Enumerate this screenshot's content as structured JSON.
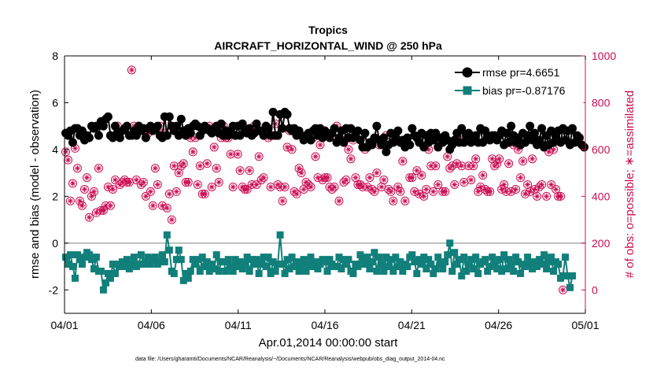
{
  "chart_data": {
    "type": "line",
    "title": "Tropics",
    "subtitle": "AIRCRAFT_HORIZONTAL_WIND @ 250 hPa",
    "xlabel": "Apr.01,2014 00:00:00 start",
    "ylabel_left": "rmse and bias (model - observation)",
    "ylabel_right": "# of obs: o=possible; ∗=assimilated",
    "xlim": [
      0,
      30
    ],
    "ylim_left": [
      -3,
      8
    ],
    "ylim_right": [
      -100,
      1000
    ],
    "x_tick_values": [
      0,
      5,
      10,
      15,
      20,
      25,
      30
    ],
    "x_tick_labels": [
      "04/01",
      "04/06",
      "04/11",
      "04/16",
      "04/21",
      "04/26",
      "05/01"
    ],
    "y_left_ticks": [
      "-2",
      "0",
      "2",
      "4",
      "6",
      "8"
    ],
    "y_right_ticks": [
      "0",
      "200",
      "400",
      "600",
      "800",
      "1000"
    ],
    "zero_line": 0,
    "series": [
      {
        "name": "rmse",
        "legend": "rmse pr=4.6651",
        "color": "#000000",
        "marker": "circle",
        "axis": "left",
        "values": [
          4.7,
          4.6,
          4.8,
          4.3,
          4.9,
          4.9,
          4.6,
          4.8,
          4.4,
          4.6,
          4.5,
          5.0,
          4.9,
          5.0,
          4.6,
          5.2,
          5.0,
          5.3,
          5.4,
          4.6,
          4.5,
          5.0,
          4.7,
          4.5,
          4.8,
          4.9,
          5.0,
          4.6,
          4.6,
          4.8,
          4.6,
          5.0,
          4.8,
          4.9,
          4.5,
          4.9,
          5.0,
          4.8,
          4.9,
          5.0,
          4.6,
          4.5,
          5.4,
          4.6,
          5.4,
          5.0,
          4.8,
          5.0,
          4.6,
          5.3,
          4.8,
          4.6,
          4.9,
          4.7,
          5.0,
          5.1,
          5.0,
          4.6,
          4.8,
          5.0,
          4.9,
          4.8,
          4.7,
          4.9,
          5.0,
          4.7,
          5.1,
          4.6,
          4.8,
          4.6,
          4.8,
          5.0,
          4.6,
          5.0,
          4.6,
          5.1,
          4.8,
          4.7,
          4.9,
          4.6,
          4.7,
          5.1,
          4.8,
          4.8,
          4.6,
          5.0,
          4.9,
          4.6,
          5.6,
          4.6,
          4.6,
          5.5,
          4.9,
          5.6,
          5.5,
          4.9,
          4.8,
          4.9,
          4.6,
          4.8,
          4.6,
          4.4,
          4.5,
          4.7,
          4.4,
          4.8,
          4.9,
          4.6,
          4.9,
          4.5,
          4.8,
          4.7,
          4.5,
          4.7,
          4.9,
          4.3,
          4.5,
          4.8,
          4.3,
          4.9,
          4.5,
          4.9,
          4.5,
          4.7,
          4.8,
          4.4,
          4.1,
          4.7,
          4.1,
          4.3,
          4.2,
          4.5,
          5.0,
          4.4,
          4.2,
          4.5,
          3.9,
          4.2,
          4.7,
          4.3,
          4.5,
          4.8,
          4.3,
          4.4,
          4.1,
          4.5,
          4.2,
          4.9,
          4.6,
          4.5,
          4.3,
          4.7,
          4.1,
          4.6,
          4.3,
          4.7,
          4.4,
          4.7,
          4.1,
          4.5,
          4.3,
          4.6,
          4.4,
          4.0,
          4.2,
          4.4,
          4.7,
          4.3,
          4.9,
          4.3,
          4.6,
          4.7,
          4.3,
          4.5,
          4.6,
          4.3,
          4.9,
          4.3,
          4.8,
          4.6,
          4.4,
          4.6,
          4.6,
          4.4,
          4.6,
          4.8,
          4.2,
          4.7,
          4.3,
          5.0,
          4.6,
          4.3,
          4.5,
          4.2,
          4.7,
          4.3,
          4.6,
          5.0,
          4.4,
          4.7,
          4.2,
          4.4,
          4.9,
          4.1,
          4.6,
          4.2,
          4.8,
          4.3,
          4.6,
          4.8,
          4.3,
          4.9,
          4.4,
          4.8,
          4.2,
          4.9,
          4.3,
          4.6,
          4.5,
          4.2,
          4.1
        ]
      },
      {
        "name": "bias",
        "legend": "bias pr=-0.87176",
        "color": "#117f7a",
        "marker": "square",
        "axis": "left",
        "values": [
          -0.6,
          -0.9,
          -0.5,
          -1.0,
          -1.5,
          -0.5,
          -0.7,
          -0.9,
          -0.6,
          -0.4,
          -0.5,
          -0.7,
          -1.1,
          -0.6,
          -1.2,
          -1.2,
          -2.0,
          -1.7,
          -1.3,
          -1.5,
          -0.9,
          -1.3,
          -0.9,
          -1.0,
          -0.8,
          -1.0,
          -0.7,
          -1.1,
          -0.9,
          -0.6,
          -1.0,
          -0.9,
          -0.5,
          -0.9,
          -0.8,
          -0.6,
          -0.9,
          -0.7,
          -0.6,
          -0.9,
          -0.8,
          -0.5,
          -0.8,
          0.35,
          -0.3,
          -1.2,
          -1.3,
          -0.7,
          -0.3,
          -0.7,
          -1.6,
          -1.3,
          -1.5,
          -1.2,
          -0.7,
          -0.9,
          -0.7,
          -1.2,
          -0.6,
          -1.0,
          -0.8,
          -1.2,
          -0.9,
          -1.1,
          -0.5,
          -1.2,
          -0.8,
          -0.8,
          -1.2,
          -0.7,
          -1.0,
          -1.2,
          -0.7,
          -1.0,
          -0.8,
          -1.1,
          -0.9,
          -0.6,
          -1.2,
          -0.7,
          -0.9,
          -0.7,
          -1.3,
          -0.9,
          -0.6,
          -1.0,
          -0.6,
          -1.3,
          -0.8,
          -1.2,
          -0.9,
          0.35,
          -0.9,
          -1.3,
          -0.7,
          -1.1,
          -0.6,
          -1.0,
          -0.8,
          -1.2,
          -1.0,
          -0.7,
          -1.2,
          -0.9,
          -0.6,
          -1.0,
          -0.8,
          -1.1,
          -0.9,
          -0.7,
          -0.8,
          -1.2,
          -0.7,
          -0.9,
          -1.0,
          -1.0,
          -0.6,
          -1.1,
          -0.7,
          -0.9,
          -0.7,
          -1.2,
          -1.3,
          -0.9,
          -1.0,
          -0.5,
          -0.7,
          -0.9,
          -0.6,
          -1.1,
          -0.8,
          -0.4,
          -1.2,
          -0.6,
          -0.9,
          -1.2,
          -0.6,
          -1.0,
          -0.7,
          -1.2,
          -0.6,
          -1.0,
          -0.8,
          -1.2,
          -0.9,
          -1.0,
          -0.6,
          -0.5,
          -0.8,
          -1.3,
          -0.7,
          -0.9,
          -0.6,
          -1.1,
          -0.7,
          -0.9,
          -1.3,
          -1.1,
          -0.6,
          -0.9,
          -1.1,
          -0.8,
          -0.5,
          0.0,
          -1.2,
          -0.4,
          -0.9,
          -0.7,
          -1.4,
          -0.6,
          -1.2,
          -0.9,
          -0.7,
          -1.1,
          -0.6,
          -1.3,
          -0.9,
          -0.8,
          -0.7,
          -1.2,
          -1.0,
          -0.6,
          -0.9,
          -1.1,
          -0.7,
          -1.2,
          -0.5,
          -1.1,
          -0.7,
          -0.9,
          -1.2,
          -0.6,
          -0.8,
          -1.3,
          -0.9,
          -1.0,
          -0.6,
          -0.9,
          -1.1,
          -0.8,
          -1.0,
          -0.7,
          -0.9,
          -0.5,
          -1.1,
          -0.8,
          -0.6,
          -1.2,
          -0.8,
          -0.9,
          -1.5,
          -1.4,
          -0.6,
          -1.4,
          -1.9,
          -1.4
        ]
      },
      {
        "name": "possible",
        "marker": "circle-open",
        "color": "#cc0d54",
        "axis": "right",
        "values": [
          590,
          555,
          380,
          455,
          605,
          520,
          380,
          360,
          430,
          480,
          310,
          400,
          420,
          330,
          520,
          340,
          340,
          360,
          440,
          360,
          430,
          470,
          700,
          450,
          460,
          470,
          460,
          460,
          940,
          700,
          470,
          700,
          450,
          460,
          400,
          670,
          420,
          360,
          520,
          450,
          700,
          360,
          670,
          350,
          410,
          300,
          530,
          420,
          500,
          530,
          540,
          460,
          460,
          650,
          590,
          650,
          450,
          530,
          410,
          410,
          540,
          700,
          440,
          610,
          520,
          460,
          650,
          700,
          650,
          650,
          580,
          440,
          660,
          580,
          510,
          440,
          430,
          430,
          510,
          450,
          700,
          450,
          570,
          470,
          480,
          700,
          650,
          440,
          660,
          710,
          450,
          440,
          380,
          440,
          610,
          680,
          600,
          420,
          410,
          520,
          500,
          430,
          460,
          450,
          440,
          650,
          570,
          480,
          620,
          470,
          480,
          480,
          440,
          430,
          440,
          700,
          380,
          640,
          460,
          470,
          600,
          560,
          640,
          480,
          450,
          450,
          440,
          600,
          440,
          480,
          430,
          420,
          500,
          620,
          440,
          470,
          660,
          430,
          420,
          380,
          650,
          440,
          420,
          550,
          380,
          620,
          480,
          480,
          420,
          510,
          410,
          490,
          400,
          430,
          600,
          530,
          420,
          530,
          450,
          640,
          420,
          420,
          570,
          520,
          530,
          450,
          540,
          640,
          530,
          460,
          650,
          530,
          470,
          530,
          560,
          420,
          440,
          490,
          430,
          420,
          420,
          560,
          530,
          540,
          560,
          430,
          450,
          420,
          540,
          420,
          620,
          430,
          600,
          480,
          550,
          410,
          450,
          420,
          560,
          430,
          400,
          440,
          450,
          610,
          400,
          590,
          450,
          600,
          430,
          400,
          400,
          0
        ]
      },
      {
        "name": "assimilated",
        "marker": "asterisk",
        "color": "#cc0d54",
        "axis": "right",
        "values": [
          590,
          555,
          380,
          455,
          605,
          520,
          380,
          360,
          430,
          480,
          310,
          400,
          420,
          330,
          520,
          340,
          340,
          360,
          440,
          360,
          430,
          470,
          700,
          450,
          460,
          470,
          460,
          460,
          940,
          700,
          470,
          700,
          450,
          460,
          400,
          670,
          420,
          360,
          520,
          450,
          700,
          360,
          670,
          350,
          410,
          300,
          530,
          420,
          500,
          530,
          540,
          460,
          460,
          650,
          590,
          650,
          450,
          530,
          410,
          410,
          540,
          700,
          440,
          610,
          520,
          460,
          650,
          700,
          650,
          650,
          580,
          440,
          660,
          580,
          510,
          440,
          430,
          430,
          510,
          450,
          700,
          450,
          570,
          470,
          480,
          700,
          650,
          440,
          660,
          710,
          450,
          440,
          380,
          440,
          610,
          680,
          600,
          420,
          410,
          520,
          500,
          430,
          460,
          450,
          440,
          650,
          570,
          480,
          620,
          470,
          480,
          480,
          440,
          430,
          440,
          700,
          380,
          640,
          460,
          470,
          600,
          560,
          640,
          480,
          450,
          450,
          440,
          600,
          440,
          480,
          430,
          420,
          500,
          620,
          440,
          470,
          660,
          430,
          420,
          380,
          650,
          440,
          420,
          550,
          380,
          620,
          480,
          480,
          420,
          510,
          410,
          490,
          400,
          430,
          600,
          530,
          420,
          530,
          450,
          640,
          420,
          420,
          570,
          520,
          530,
          450,
          540,
          640,
          530,
          460,
          650,
          530,
          470,
          530,
          560,
          420,
          440,
          490,
          430,
          420,
          420,
          560,
          530,
          540,
          560,
          430,
          450,
          420,
          540,
          420,
          620,
          430,
          600,
          480,
          550,
          410,
          450,
          420,
          560,
          430,
          400,
          440,
          450,
          610,
          400,
          590,
          450,
          600,
          430,
          400,
          400,
          0
        ]
      }
    ]
  },
  "footnote": "data file: /Users/gharamti/Documents/NCAR/Reanalysis/~/Documents/NCAR/Reanalysis/webpub/obs_diag_output_2014-04.nc"
}
